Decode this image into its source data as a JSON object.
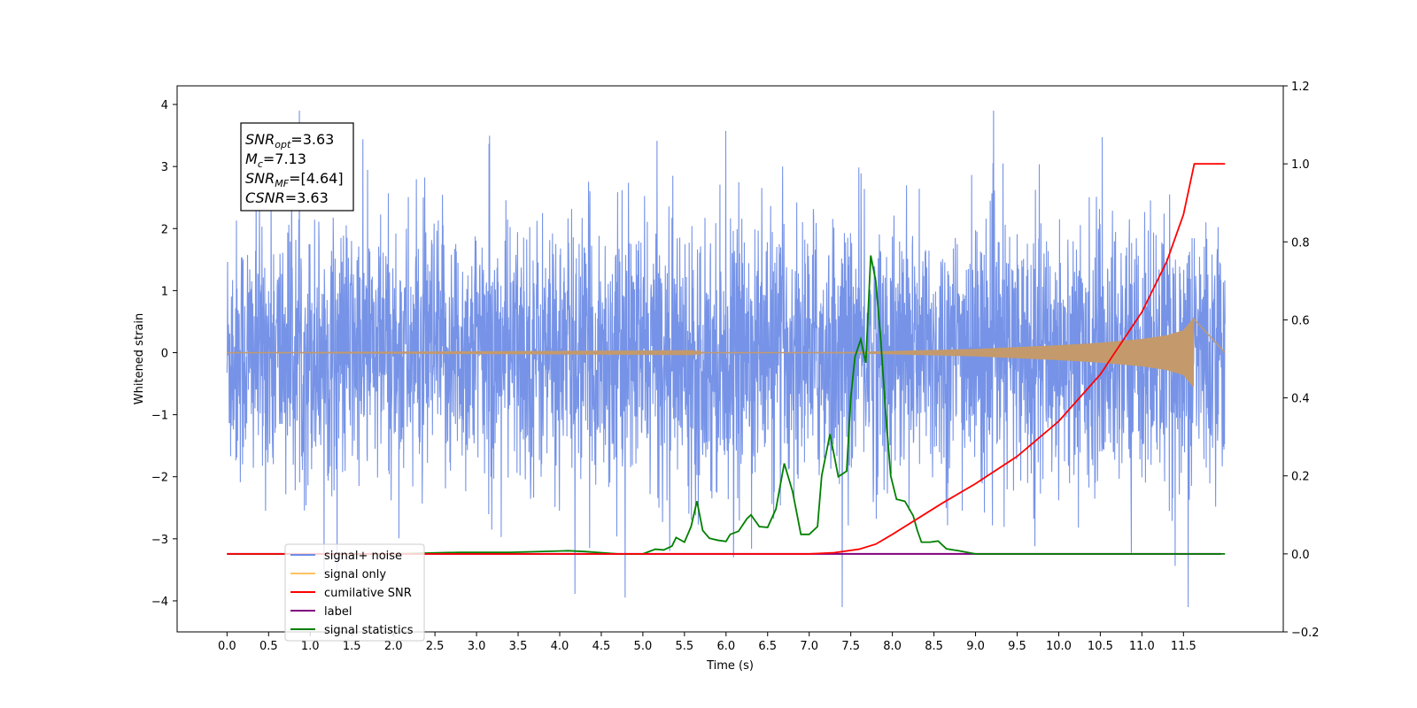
{
  "chart_data": {
    "type": "line",
    "xlabel": "Time (s)",
    "ylabel": "Whitened strain",
    "ylabel_right": "",
    "xlim": [
      -0.6,
      12.7
    ],
    "ylim": [
      -4.5,
      4.3
    ],
    "ylim_right": [
      -0.2,
      1.2
    ],
    "x_ticks": [
      0.0,
      0.5,
      1.0,
      1.5,
      2.0,
      2.5,
      3.0,
      3.5,
      4.0,
      4.5,
      5.0,
      5.5,
      6.0,
      6.5,
      7.0,
      7.5,
      8.0,
      8.5,
      9.0,
      9.5,
      10.0,
      10.5,
      11.0,
      11.5
    ],
    "x_tick_labels": [
      "0.0",
      "0.5",
      "1.0",
      "1.5",
      "2.0",
      "2.5",
      "3.0",
      "3.5",
      "4.0",
      "4.5",
      "5.0",
      "5.5",
      "6.0",
      "6.5",
      "7.0",
      "7.5",
      "8.0",
      "8.5",
      "9.0",
      "9.5",
      "10.0",
      "10.5",
      "11.0",
      "11.5"
    ],
    "y_ticks": [
      4,
      3,
      2,
      1,
      0,
      -1,
      -2,
      -3,
      -4
    ],
    "y_tick_labels": [
      "4",
      "3",
      "2",
      "1",
      "0",
      "−1",
      "−2",
      "−3",
      "−4"
    ],
    "y_ticks_right": [
      1.2,
      1.0,
      0.8,
      0.6,
      0.4,
      0.2,
      0.0,
      -0.2
    ],
    "y_tick_labels_right": [
      "1.2",
      "1.0",
      "0.8",
      "0.6",
      "0.4",
      "0.2",
      "0.0",
      "−0.2"
    ],
    "grid": false,
    "legend_position": "lower-left",
    "colors": {
      "noise": "#6f8de6",
      "signal": "#c49a6c",
      "cumulative": "#ff0000",
      "label": "#800080",
      "statistics": "#008000"
    },
    "series": [
      {
        "name": "signal+ noise",
        "axis": "left",
        "color": "#6f8de6",
        "x_range": [
          0.0,
          12.0
        ],
        "description_values": "noise band",
        "typical_amplitude": 1.5,
        "peak_max": 3.9,
        "peak_min": -4.1
      },
      {
        "name": "signal only",
        "axis": "left",
        "color": "#c49a6c",
        "x_range": [
          0.0,
          11.62
        ],
        "chirp_envelope": [
          [
            0.0,
            0.0
          ],
          [
            7.5,
            0.01
          ],
          [
            9.0,
            0.06
          ],
          [
            10.0,
            0.12
          ],
          [
            10.5,
            0.16
          ],
          [
            11.0,
            0.22
          ],
          [
            11.3,
            0.28
          ],
          [
            11.5,
            0.36
          ],
          [
            11.62,
            0.55
          ]
        ]
      },
      {
        "name": "cumilative SNR",
        "axis": "right",
        "color": "#ff0000",
        "x": [
          0.0,
          7.0,
          7.3,
          7.6,
          7.8,
          8.0,
          8.3,
          8.6,
          9.0,
          9.5,
          10.0,
          10.5,
          11.0,
          11.3,
          11.5,
          11.62,
          11.63,
          12.0
        ],
        "y": [
          0.0,
          0.0,
          0.003,
          0.012,
          0.025,
          0.05,
          0.09,
          0.13,
          0.18,
          0.25,
          0.34,
          0.46,
          0.62,
          0.75,
          0.87,
          0.99,
          1.0,
          1.0
        ]
      },
      {
        "name": "label",
        "axis": "right",
        "color": "#800080",
        "x": [
          0.0,
          11.6,
          11.62,
          11.63,
          11.95
        ],
        "y": [
          0.0,
          0.0,
          0.0,
          0.0,
          0.0
        ]
      },
      {
        "name": "signal statistics",
        "axis": "right",
        "color": "#008000",
        "x": [
          0.0,
          2.0,
          2.8,
          3.4,
          4.1,
          4.3,
          4.7,
          5.0,
          5.15,
          5.25,
          5.35,
          5.4,
          5.5,
          5.58,
          5.65,
          5.72,
          5.8,
          5.9,
          6.0,
          6.05,
          6.15,
          6.25,
          6.3,
          6.4,
          6.5,
          6.6,
          6.7,
          6.8,
          6.9,
          7.0,
          7.1,
          7.15,
          7.25,
          7.35,
          7.45,
          7.5,
          7.55,
          7.62,
          7.68,
          7.74,
          7.8,
          7.86,
          7.92,
          7.98,
          8.05,
          8.15,
          8.25,
          8.3,
          8.35,
          8.45,
          8.55,
          8.65,
          8.8,
          9.0,
          9.2,
          12.0
        ],
        "y": [
          0.0,
          0.0,
          0.004,
          0.004,
          0.008,
          0.006,
          0.0,
          0.0,
          0.012,
          0.01,
          0.02,
          0.042,
          0.03,
          0.07,
          0.135,
          0.06,
          0.04,
          0.035,
          0.032,
          0.05,
          0.058,
          0.09,
          0.1,
          0.07,
          0.068,
          0.115,
          0.232,
          0.16,
          0.05,
          0.05,
          0.07,
          0.2,
          0.307,
          0.198,
          0.212,
          0.4,
          0.505,
          0.55,
          0.49,
          0.765,
          0.7,
          0.55,
          0.36,
          0.2,
          0.14,
          0.135,
          0.098,
          0.06,
          0.03,
          0.03,
          0.033,
          0.013,
          0.008,
          0.0,
          0.0,
          0.0
        ]
      }
    ],
    "annotation_box": [
      {
        "main": "SNR",
        "sub": "opt",
        "value": "=3.63"
      },
      {
        "main": "M",
        "sub": "c",
        "value": "=7.13"
      },
      {
        "main": "SNR",
        "sub": "MF",
        "value": "=[4.64]"
      },
      {
        "main": "CSNR",
        "sub": "",
        "value": "=3.63"
      }
    ],
    "legend": [
      {
        "label": "signal+ noise",
        "color": "#6f8de6"
      },
      {
        "label": "signal only",
        "color": "#ffc060"
      },
      {
        "label": "cumilative SNR",
        "color": "#ff0000"
      },
      {
        "label": "label",
        "color": "#800080"
      },
      {
        "label": "signal statistics",
        "color": "#008000"
      }
    ]
  }
}
